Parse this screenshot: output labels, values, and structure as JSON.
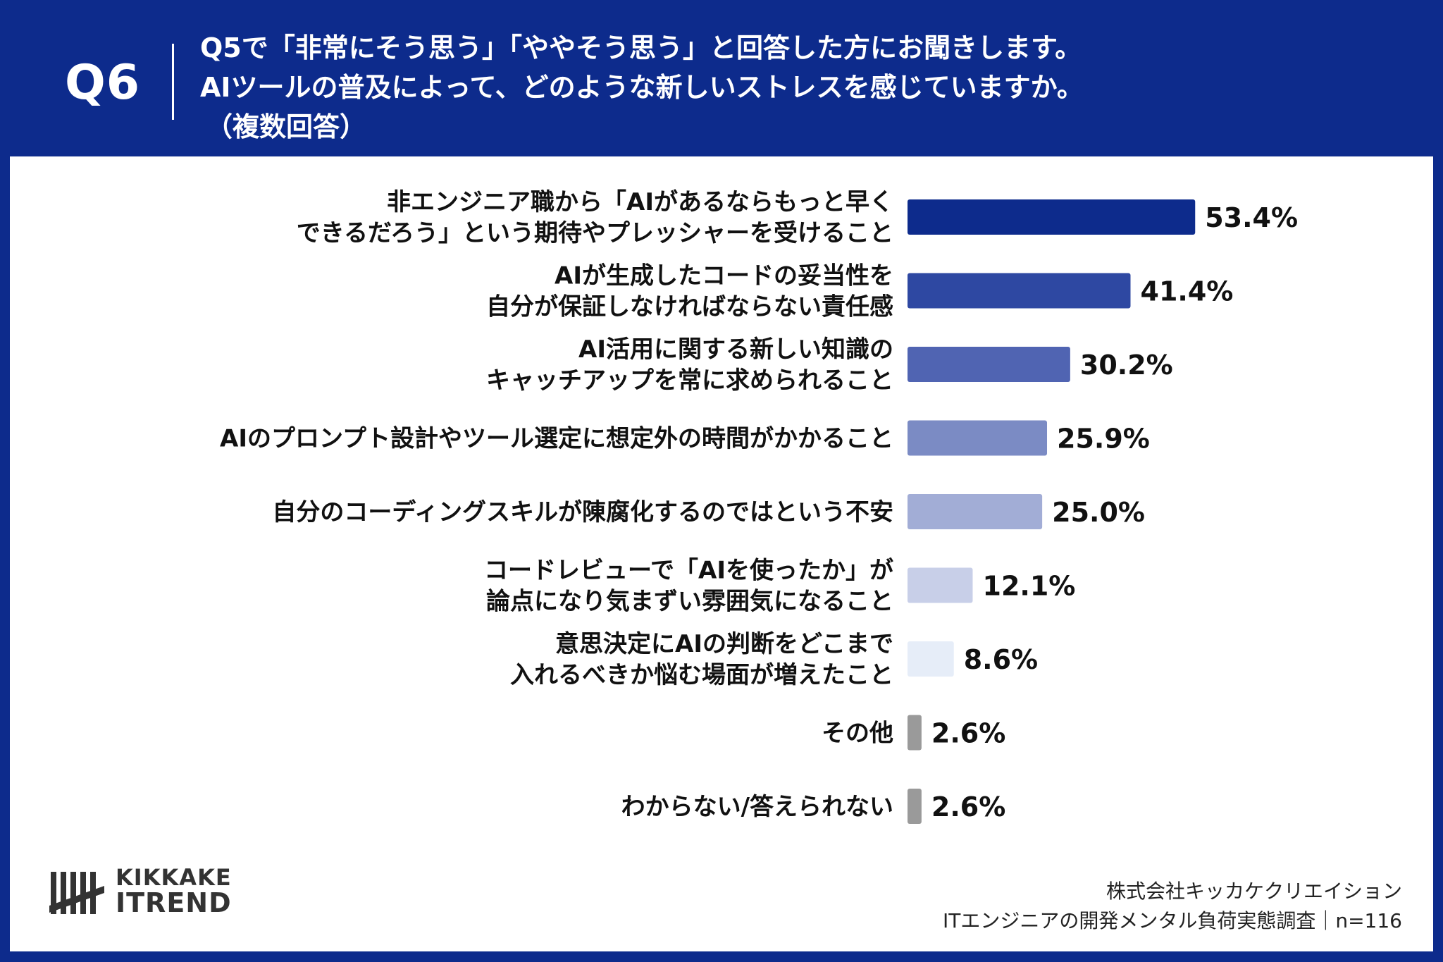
{
  "header": {
    "question_number": "Q6",
    "question_line1": "Q5で「非常にそう思う」「ややそう思う」と回答した方にお聞きします。",
    "question_line2": "AIツールの普及によって、どのような新しいストレスを感じていますか。",
    "question_note": "（複数回答）"
  },
  "chart_data": {
    "type": "bar",
    "orientation": "horizontal",
    "categories": [
      [
        "非エンジニア職から「AIがあるならもっと早く",
        "できるだろう」という期待やプレッシャーを受けること"
      ],
      [
        "AIが生成したコードの妥当性を",
        "自分が保証しなければならない責任感"
      ],
      [
        "AI活用に関する新しい知識の",
        "キャッチアップを常に求められること"
      ],
      [
        "AIのプロンプト設計やツール選定に想定外の時間がかかること"
      ],
      [
        "自分のコーディングスキルが陳腐化するのではという不安"
      ],
      [
        "コードレビューで「AIを使ったか」が",
        "論点になり気まずい雰囲気になること"
      ],
      [
        "意思決定にAIの判断をどこまで",
        "入れるべきか悩む場面が増えたこと"
      ],
      [
        "その他"
      ],
      [
        "わからない/答えられない"
      ]
    ],
    "values": [
      53.4,
      41.4,
      30.2,
      25.9,
      25.0,
      12.1,
      8.6,
      2.6,
      2.6
    ],
    "value_labels": [
      "53.4%",
      "41.4%",
      "30.2%",
      "25.9%",
      "25.0%",
      "12.1%",
      "8.6%",
      "2.6%",
      "2.6%"
    ],
    "bar_colors": [
      "#0d2b8c",
      "#2e48a2",
      "#5064b2",
      "#7b8bc4",
      "#a2add6",
      "#c8cfe8",
      "#e6edf8",
      "#9a9a9a",
      "#9a9a9a"
    ]
  },
  "footer": {
    "logo_line1": "KIKKAKE",
    "logo_line2": "ITREND",
    "company": "株式会社キッカケクリエイション",
    "survey": "ITエンジニアの開発メンタル負荷実態調査｜n=116"
  }
}
